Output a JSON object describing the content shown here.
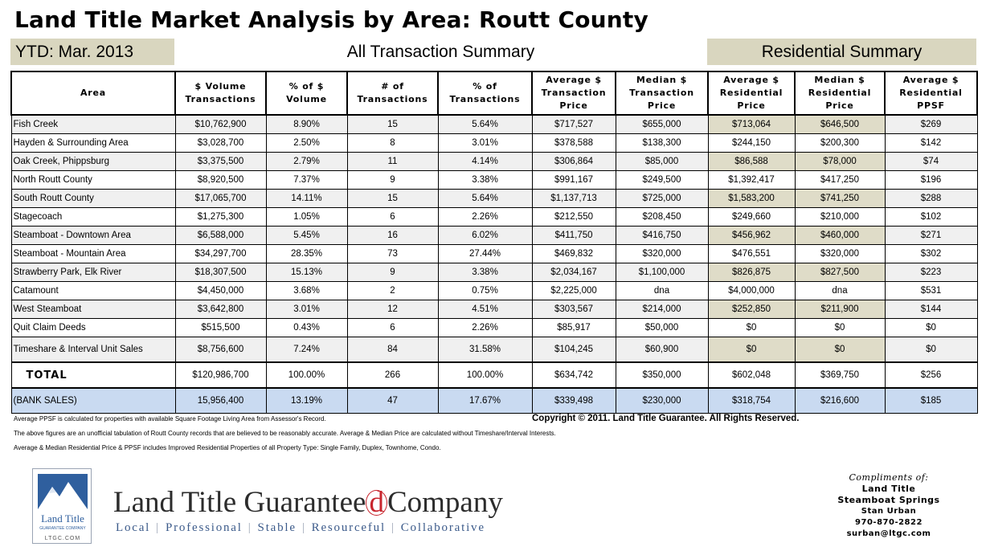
{
  "title": "Land Title Market Analysis by Area: Routt County",
  "bands": {
    "ytd": "YTD: Mar. 2013",
    "all": "All Transaction Summary",
    "res": "Residential Summary"
  },
  "colors": {
    "residential_band": "#d9d6bf",
    "bank_row": "#c9daf1",
    "logo_accent": "#c8262e"
  },
  "columns": [
    "Area",
    "$ Volume Transactions",
    "% of $ Volume",
    "# of Transactions",
    "% of Transactions",
    "Average $ Transaction Price",
    "Median $ Transaction Price",
    "Average $ Residential Price",
    "Median $ Residential Price",
    "Average $ Residential PPSF"
  ],
  "rows": [
    [
      "Fish Creek",
      "$10,762,900",
      "8.90%",
      "15",
      "5.64%",
      "$717,527",
      "$655,000",
      "$713,064",
      "$646,500",
      "$269"
    ],
    [
      "Hayden & Surrounding Area",
      "$3,028,700",
      "2.50%",
      "8",
      "3.01%",
      "$378,588",
      "$138,300",
      "$244,150",
      "$200,300",
      "$142"
    ],
    [
      "Oak Creek, Phippsburg",
      "$3,375,500",
      "2.79%",
      "11",
      "4.14%",
      "$306,864",
      "$85,000",
      "$86,588",
      "$78,000",
      "$74"
    ],
    [
      "North Routt County",
      "$8,920,500",
      "7.37%",
      "9",
      "3.38%",
      "$991,167",
      "$249,500",
      "$1,392,417",
      "$417,250",
      "$196"
    ],
    [
      "South Routt County",
      "$17,065,700",
      "14.11%",
      "15",
      "5.64%",
      "$1,137,713",
      "$725,000",
      "$1,583,200",
      "$741,250",
      "$288"
    ],
    [
      "Stagecoach",
      "$1,275,300",
      "1.05%",
      "6",
      "2.26%",
      "$212,550",
      "$208,450",
      "$249,660",
      "$210,000",
      "$102"
    ],
    [
      "Steamboat - Downtown Area",
      "$6,588,000",
      "5.45%",
      "16",
      "6.02%",
      "$411,750",
      "$416,750",
      "$456,962",
      "$460,000",
      "$271"
    ],
    [
      "Steamboat - Mountain Area",
      "$34,297,700",
      "28.35%",
      "73",
      "27.44%",
      "$469,832",
      "$320,000",
      "$476,551",
      "$320,000",
      "$302"
    ],
    [
      "Strawberry Park, Elk River",
      "$18,307,500",
      "15.13%",
      "9",
      "3.38%",
      "$2,034,167",
      "$1,100,000",
      "$826,875",
      "$827,500",
      "$223"
    ],
    [
      "Catamount",
      "$4,450,000",
      "3.68%",
      "2",
      "0.75%",
      "$2,225,000",
      "dna",
      "$4,000,000",
      "dna",
      "$531"
    ],
    [
      "West Steamboat",
      "$3,642,800",
      "3.01%",
      "12",
      "4.51%",
      "$303,567",
      "$214,000",
      "$252,850",
      "$211,900",
      "$144"
    ],
    [
      "Quit Claim Deeds",
      "$515,500",
      "0.43%",
      "6",
      "2.26%",
      "$85,917",
      "$50,000",
      "$0",
      "$0",
      "$0"
    ],
    [
      "Timeshare & Interval Unit Sales",
      "$8,756,600",
      "7.24%",
      "84",
      "31.58%",
      "$104,245",
      "$60,900",
      "$0",
      "$0",
      "$0"
    ]
  ],
  "total": [
    "TOTAL",
    "$120,986,700",
    "100.00%",
    "266",
    "100.00%",
    "$634,742",
    "$350,000",
    "$602,048",
    "$369,750",
    "$256"
  ],
  "bank": [
    "(BANK SALES)",
    "15,956,400",
    "13.19%",
    "47",
    "17.67%",
    "$339,498",
    "$230,000",
    "$318,754",
    "$216,600",
    "$185"
  ],
  "copyright": "Copyright © 2011.  Land Title Guarantee.  All Rights Reserved.",
  "notes": [
    "Average PPSF is calculated for properties with available Square Footage Living Area from Assessor's Record.",
    "The above figures are an unofficial tabulation of Routt County records that are believed to be reasonably accurate. Average & Median Price are calculated without Timeshare/Interval Interests.",
    "Average & Median Residential Price & PPSF includes Improved Residential Properties of all Property Type: Single Family, Duplex, Townhome, Condo."
  ],
  "logo": {
    "mark_name": "Land Title",
    "mark_sub": "GUARANTEE COMPANY",
    "mark_url": "LTGC.COM",
    "company_pre": "Land Title Guarantee",
    "company_d": "d",
    "company_post": "Company",
    "tagline": [
      "Local",
      "Professional",
      "Stable",
      "Resourceful",
      "Collaborative"
    ]
  },
  "contact": {
    "compliments": "Compliments of:",
    "company": "Land Title",
    "office": "Steamboat Springs",
    "name": "Stan Urban",
    "phone": "970-870-2822",
    "email": "surban@ltgc.com"
  }
}
